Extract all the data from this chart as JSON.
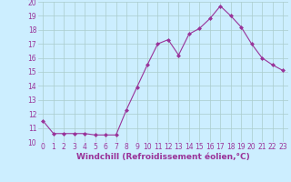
{
  "x": [
    0,
    1,
    2,
    3,
    4,
    5,
    6,
    7,
    8,
    9,
    10,
    11,
    12,
    13,
    14,
    15,
    16,
    17,
    18,
    19,
    20,
    21,
    22,
    23
  ],
  "y": [
    11.5,
    10.6,
    10.6,
    10.6,
    10.6,
    10.5,
    10.5,
    10.5,
    12.3,
    13.9,
    15.5,
    17.0,
    17.3,
    16.2,
    17.7,
    18.1,
    18.8,
    19.7,
    19.0,
    18.2,
    17.0,
    16.0,
    15.5,
    15.1
  ],
  "line_color": "#993399",
  "marker": "D",
  "marker_size": 2,
  "bg_color": "#cceeff",
  "grid_color": "#aacccc",
  "xlabel": "Windchill (Refroidissement éolien,°C)",
  "xlabel_color": "#993399",
  "ylim": [
    10,
    20
  ],
  "yticks": [
    10,
    11,
    12,
    13,
    14,
    15,
    16,
    17,
    18,
    19,
    20
  ],
  "xticks": [
    0,
    1,
    2,
    3,
    4,
    5,
    6,
    7,
    8,
    9,
    10,
    11,
    12,
    13,
    14,
    15,
    16,
    17,
    18,
    19,
    20,
    21,
    22,
    23
  ],
  "tick_fontsize": 5.5,
  "xlabel_fontsize": 6.5
}
